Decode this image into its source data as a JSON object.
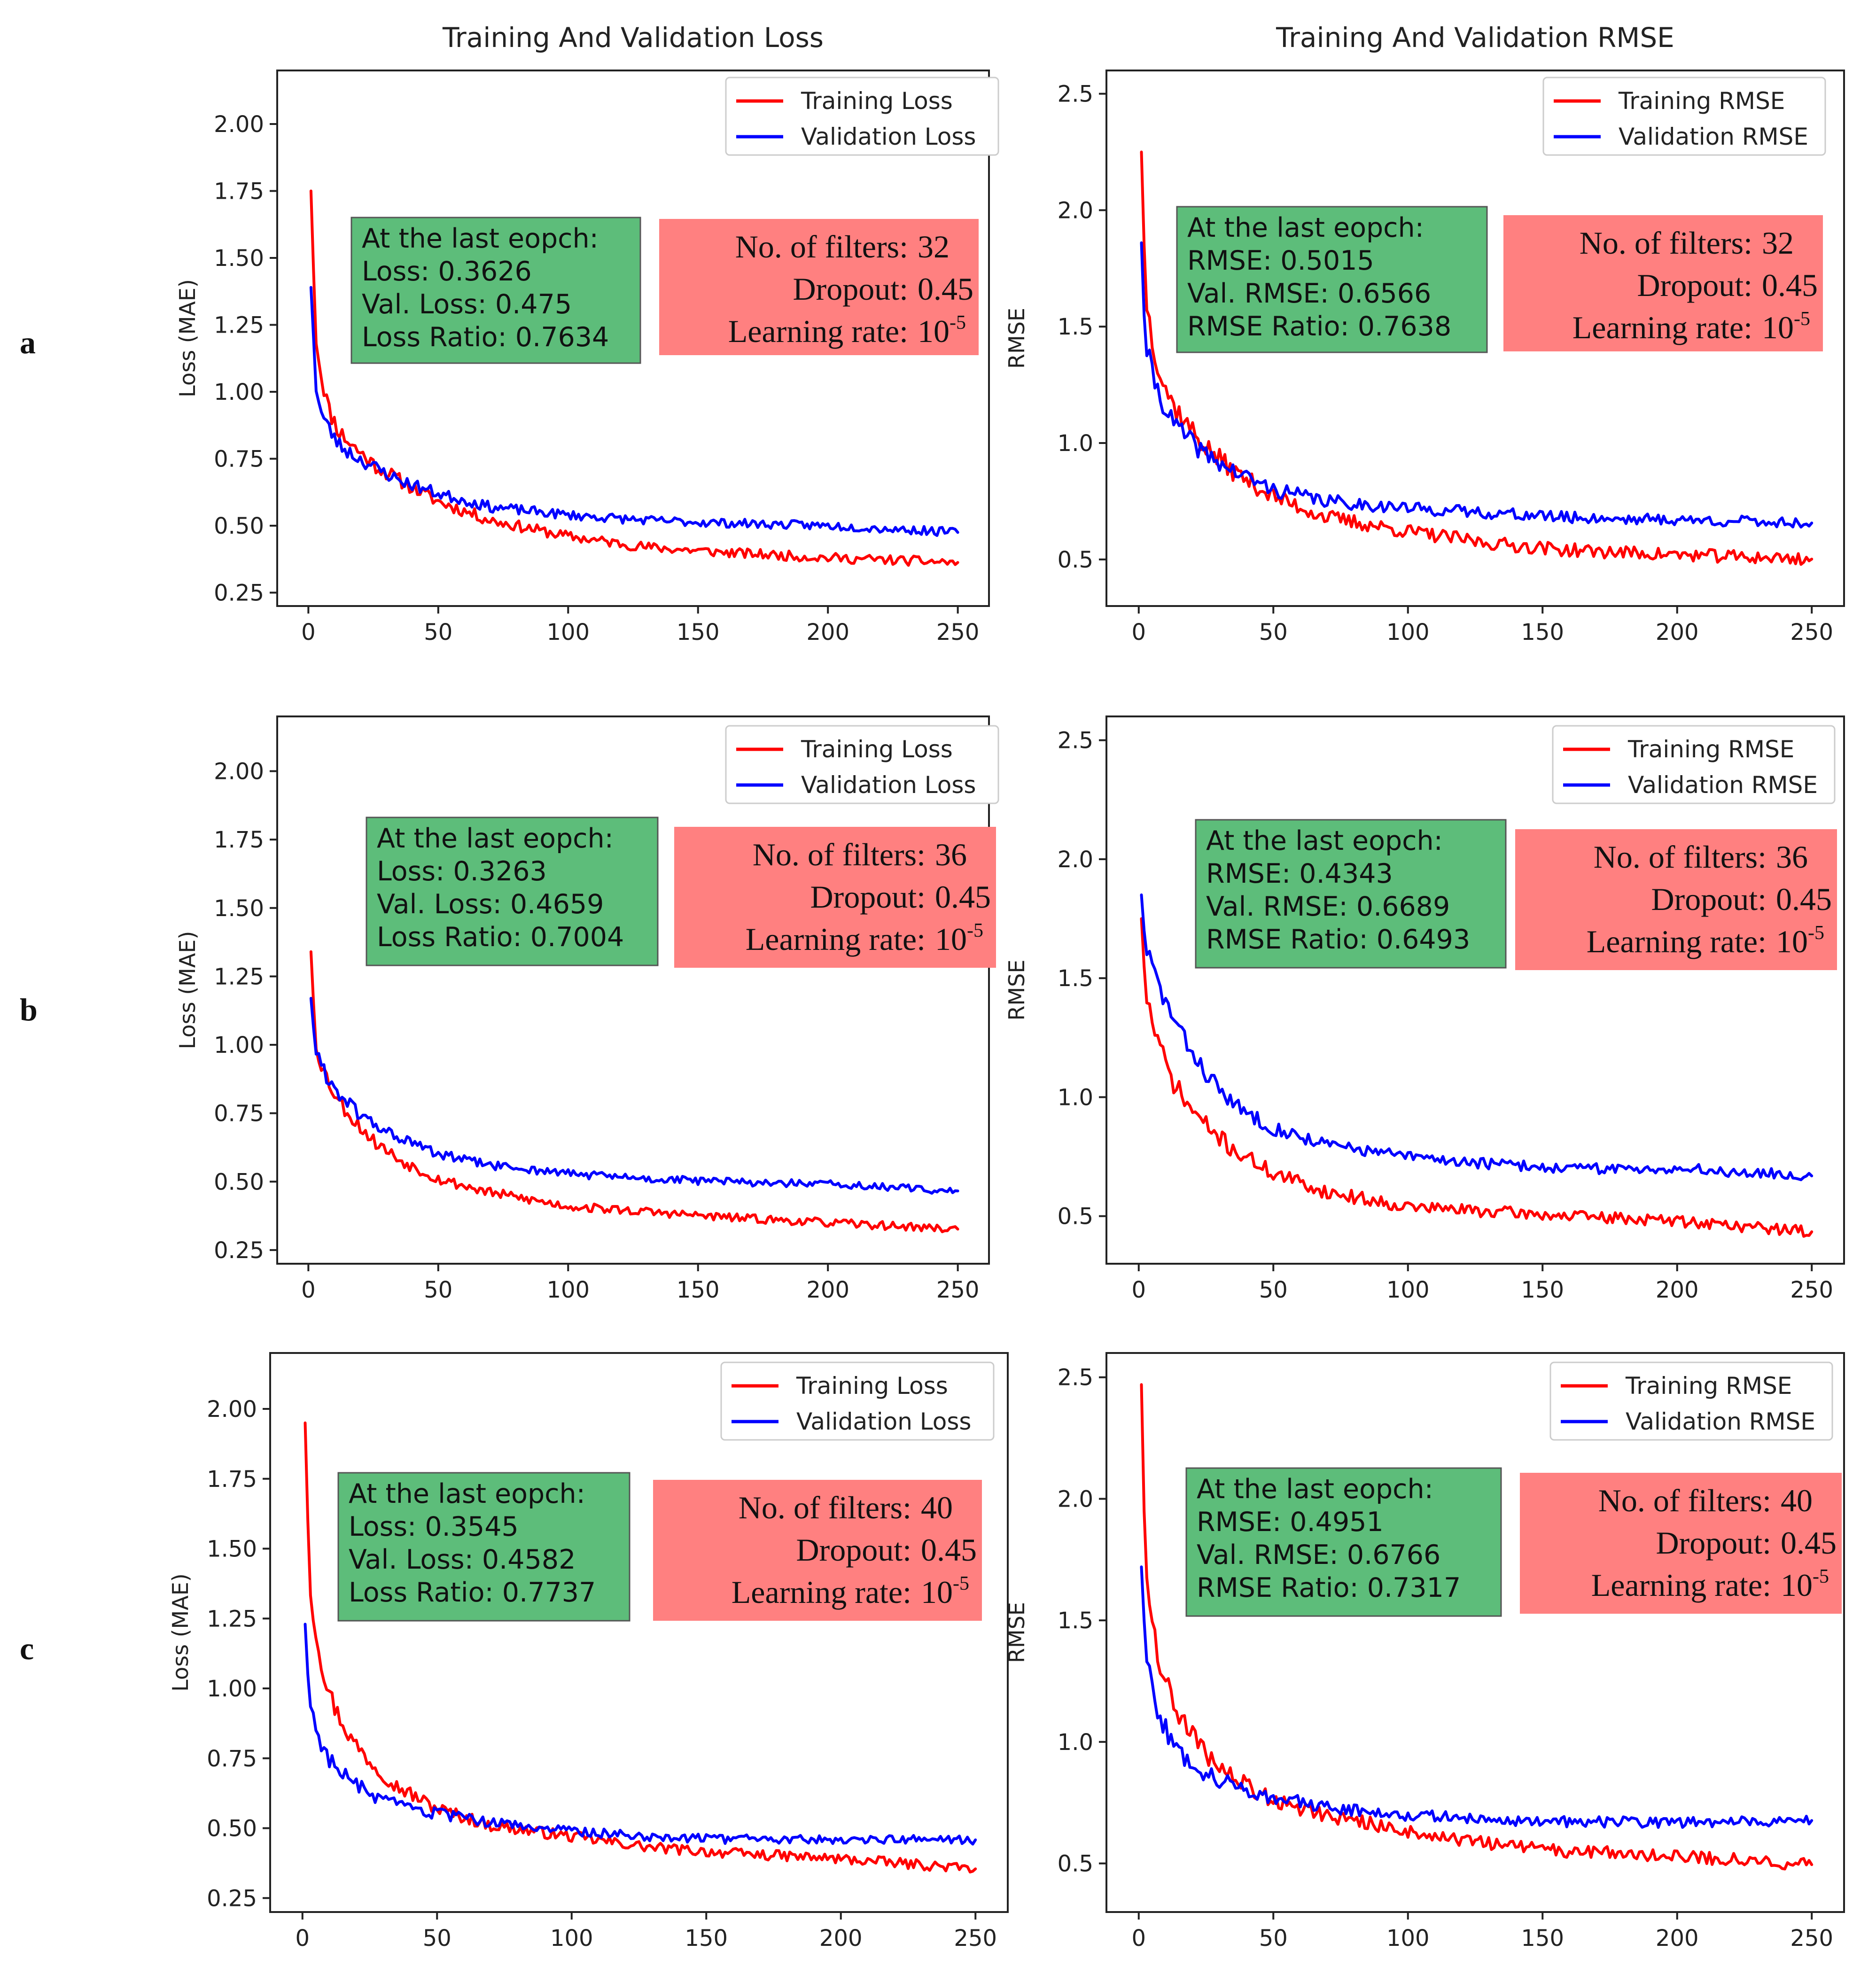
{
  "colors": {
    "training": "#ff0000",
    "validation": "#0000ff",
    "stats_box": "#5dbd7a",
    "params_box": "#ff8080",
    "frame": "#222222",
    "text": "#222222"
  },
  "row_labels": [
    "a",
    "b",
    "c"
  ],
  "chart_data": [
    {
      "type": "line",
      "row": "a",
      "column": "loss",
      "title": "Training And Validation Loss",
      "xlabel": "",
      "ylabel": "Loss (MAE)",
      "xlim": [
        -12,
        262
      ],
      "ylim": [
        0.2,
        2.2
      ],
      "xticks": [
        0,
        50,
        100,
        150,
        200,
        250
      ],
      "xtick_labels": [
        "0",
        "50",
        "100",
        "150",
        "200",
        "250"
      ],
      "yticks": [
        0.25,
        0.5,
        0.75,
        1.0,
        1.25,
        1.5,
        1.75,
        2.0
      ],
      "ytick_labels": [
        "0.25",
        "0.50",
        "0.75",
        "1.00",
        "1.25",
        "1.50",
        "1.75",
        "2.00"
      ],
      "legend": {
        "position": "upper-right",
        "entries": [
          "Training Loss",
          "Validation Loss"
        ]
      },
      "series": [
        {
          "name": "Training Loss",
          "color": "training",
          "x": [
            1,
            2,
            3,
            5,
            8,
            12,
            18,
            25,
            35,
            50,
            70,
            100,
            130,
            160,
            200,
            250
          ],
          "values": [
            1.75,
            1.45,
            1.2,
            1.06,
            0.93,
            0.85,
            0.79,
            0.73,
            0.67,
            0.59,
            0.52,
            0.46,
            0.42,
            0.4,
            0.38,
            0.3626
          ],
          "noise": 0.018,
          "seed": 11
        },
        {
          "name": "Validation Loss",
          "color": "validation",
          "x": [
            1,
            2,
            3,
            5,
            8,
            12,
            18,
            25,
            35,
            50,
            70,
            100,
            130,
            160,
            200,
            250
          ],
          "values": [
            1.39,
            1.2,
            1.02,
            0.92,
            0.86,
            0.8,
            0.76,
            0.72,
            0.67,
            0.62,
            0.57,
            0.54,
            0.52,
            0.51,
            0.5,
            0.475
          ],
          "noise": 0.016,
          "seed": 23
        }
      ],
      "stats_box": {
        "lines": [
          "At the last eopch:",
          "Loss: 0.3626",
          "Val. Loss: 0.475",
          "Loss Ratio: 0.7634"
        ]
      },
      "params_box": {
        "filters_label": "No. of filters:",
        "filters": "32",
        "dropout_label": "Dropout:",
        "dropout": "0.45",
        "lr_label": "Learning rate:",
        "lr_base": "10",
        "lr_exp": "-5"
      }
    },
    {
      "type": "line",
      "row": "a",
      "column": "rmse",
      "title": "Training And Validation RMSE",
      "xlabel": "",
      "ylabel": "RMSE",
      "xlim": [
        -12,
        262
      ],
      "ylim": [
        0.3,
        2.6
      ],
      "xticks": [
        0,
        50,
        100,
        150,
        200,
        250
      ],
      "xtick_labels": [
        "0",
        "50",
        "100",
        "150",
        "200",
        "250"
      ],
      "yticks": [
        0.5,
        1.0,
        1.5,
        2.0,
        2.5
      ],
      "ytick_labels": [
        "0.5",
        "1.0",
        "1.5",
        "2.0",
        "2.5"
      ],
      "legend": {
        "position": "upper-right",
        "entries": [
          "Training RMSE",
          "Validation RMSE"
        ]
      },
      "series": [
        {
          "name": "Training RMSE",
          "color": "training",
          "x": [
            1,
            2,
            3,
            5,
            8,
            12,
            18,
            25,
            35,
            50,
            70,
            100,
            130,
            160,
            200,
            250
          ],
          "values": [
            2.25,
            1.85,
            1.6,
            1.45,
            1.3,
            1.18,
            1.08,
            0.98,
            0.88,
            0.77,
            0.68,
            0.62,
            0.57,
            0.54,
            0.52,
            0.5015
          ],
          "noise": 0.028,
          "seed": 37
        },
        {
          "name": "Validation RMSE",
          "color": "validation",
          "x": [
            1,
            2,
            3,
            5,
            8,
            12,
            18,
            25,
            35,
            50,
            70,
            100,
            130,
            160,
            200,
            250
          ],
          "values": [
            1.86,
            1.55,
            1.4,
            1.3,
            1.2,
            1.1,
            1.02,
            0.95,
            0.88,
            0.8,
            0.75,
            0.72,
            0.7,
            0.68,
            0.67,
            0.6566
          ],
          "noise": 0.024,
          "seed": 41
        }
      ],
      "stats_box": {
        "lines": [
          "At the last eopch:",
          "RMSE: 0.5015",
          "Val. RMSE: 0.6566",
          "RMSE Ratio: 0.7638"
        ]
      },
      "params_box": {
        "filters_label": "No. of filters:",
        "filters": "32",
        "dropout_label": "Dropout:",
        "dropout": "0.45",
        "lr_label": "Learning rate:",
        "lr_base": "10",
        "lr_exp": "-5"
      }
    },
    {
      "type": "line",
      "row": "b",
      "column": "loss",
      "title": "",
      "xlabel": "",
      "ylabel": "Loss (MAE)",
      "xlim": [
        -12,
        262
      ],
      "ylim": [
        0.2,
        2.2
      ],
      "xticks": [
        0,
        50,
        100,
        150,
        200,
        250
      ],
      "xtick_labels": [
        "0",
        "50",
        "100",
        "150",
        "200",
        "250"
      ],
      "yticks": [
        0.25,
        0.5,
        0.75,
        1.0,
        1.25,
        1.5,
        1.75,
        2.0
      ],
      "ytick_labels": [
        "0.25",
        "0.50",
        "0.75",
        "1.00",
        "1.25",
        "1.50",
        "1.75",
        "2.00"
      ],
      "legend": {
        "position": "upper-right",
        "entries": [
          "Training Loss",
          "Validation Loss"
        ]
      },
      "series": [
        {
          "name": "Training Loss",
          "color": "training",
          "x": [
            1,
            2,
            3,
            5,
            8,
            12,
            18,
            25,
            35,
            50,
            70,
            100,
            130,
            160,
            200,
            250
          ],
          "values": [
            1.34,
            1.15,
            1.0,
            0.93,
            0.86,
            0.79,
            0.72,
            0.65,
            0.58,
            0.51,
            0.46,
            0.41,
            0.39,
            0.37,
            0.35,
            0.3263
          ],
          "noise": 0.015,
          "seed": 53
        },
        {
          "name": "Validation Loss",
          "color": "validation",
          "x": [
            1,
            2,
            3,
            5,
            8,
            12,
            18,
            25,
            35,
            50,
            70,
            100,
            130,
            160,
            200,
            250
          ],
          "values": [
            1.17,
            1.06,
            0.98,
            0.92,
            0.87,
            0.82,
            0.76,
            0.71,
            0.66,
            0.6,
            0.56,
            0.53,
            0.51,
            0.5,
            0.49,
            0.4659
          ],
          "noise": 0.014,
          "seed": 61
        }
      ],
      "stats_box": {
        "lines": [
          "At the last eopch:",
          "Loss: 0.3263",
          "Val. Loss: 0.4659",
          "Loss Ratio: 0.7004"
        ]
      },
      "params_box": {
        "filters_label": "No. of filters:",
        "filters": "36",
        "dropout_label": "Dropout:",
        "dropout": "0.45",
        "lr_label": "Learning rate:",
        "lr_base": "10",
        "lr_exp": "-5"
      }
    },
    {
      "type": "line",
      "row": "b",
      "column": "rmse",
      "title": "",
      "xlabel": "",
      "ylabel": "RMSE",
      "xlim": [
        -12,
        262
      ],
      "ylim": [
        0.3,
        2.6
      ],
      "xticks": [
        0,
        50,
        100,
        150,
        200,
        250
      ],
      "xtick_labels": [
        "0",
        "50",
        "100",
        "150",
        "200",
        "250"
      ],
      "yticks": [
        0.5,
        1.0,
        1.5,
        2.0,
        2.5
      ],
      "ytick_labels": [
        "0.5",
        "1.0",
        "1.5",
        "2.0",
        "2.5"
      ],
      "legend": {
        "position": "upper-right",
        "entries": [
          "Training RMSE",
          "Validation RMSE"
        ]
      },
      "series": [
        {
          "name": "Training RMSE",
          "color": "training",
          "x": [
            1,
            2,
            3,
            5,
            8,
            12,
            18,
            25,
            35,
            50,
            70,
            100,
            130,
            160,
            200,
            250
          ],
          "values": [
            1.75,
            1.55,
            1.42,
            1.32,
            1.2,
            1.08,
            0.97,
            0.88,
            0.78,
            0.68,
            0.6,
            0.54,
            0.52,
            0.5,
            0.48,
            0.4343
          ],
          "noise": 0.024,
          "seed": 71
        },
        {
          "name": "Validation RMSE",
          "color": "validation",
          "x": [
            1,
            2,
            3,
            5,
            8,
            12,
            18,
            25,
            35,
            50,
            70,
            100,
            130,
            160,
            200,
            250
          ],
          "values": [
            1.85,
            1.7,
            1.62,
            1.55,
            1.45,
            1.35,
            1.22,
            1.1,
            0.97,
            0.87,
            0.8,
            0.75,
            0.72,
            0.7,
            0.7,
            0.6689
          ],
          "noise": 0.022,
          "seed": 83
        }
      ],
      "stats_box": {
        "lines": [
          "At the last eopch:",
          "RMSE: 0.4343",
          "Val. RMSE: 0.6689",
          "RMSE Ratio: 0.6493"
        ]
      },
      "params_box": {
        "filters_label": "No. of filters:",
        "filters": "36",
        "dropout_label": "Dropout:",
        "dropout": "0.45",
        "lr_label": "Learning rate:",
        "lr_base": "10",
        "lr_exp": "-5"
      }
    },
    {
      "type": "line",
      "row": "c",
      "column": "loss",
      "title": "",
      "xlabel": "",
      "ylabel": "Loss (MAE)",
      "xlim": [
        -12,
        262
      ],
      "ylim": [
        0.2,
        2.2
      ],
      "xticks": [
        0,
        50,
        100,
        150,
        200,
        250
      ],
      "xtick_labels": [
        "0",
        "50",
        "100",
        "150",
        "200",
        "250"
      ],
      "yticks": [
        0.25,
        0.5,
        0.75,
        1.0,
        1.25,
        1.5,
        1.75,
        2.0
      ],
      "ytick_labels": [
        "0.25",
        "0.50",
        "0.75",
        "1.00",
        "1.25",
        "1.50",
        "1.75",
        "2.00"
      ],
      "legend": {
        "position": "upper-right",
        "entries": [
          "Training Loss",
          "Validation Loss"
        ]
      },
      "series": [
        {
          "name": "Training Loss",
          "color": "training",
          "x": [
            1,
            2,
            3,
            5,
            8,
            12,
            18,
            25,
            35,
            50,
            70,
            100,
            130,
            160,
            200,
            250
          ],
          "values": [
            1.95,
            1.6,
            1.35,
            1.2,
            1.05,
            0.93,
            0.82,
            0.74,
            0.65,
            0.57,
            0.51,
            0.47,
            0.43,
            0.41,
            0.39,
            0.3545
          ],
          "noise": 0.018,
          "seed": 97
        },
        {
          "name": "Validation Loss",
          "color": "validation",
          "x": [
            1,
            2,
            3,
            5,
            8,
            12,
            18,
            25,
            35,
            50,
            70,
            100,
            130,
            160,
            200,
            250
          ],
          "values": [
            1.23,
            1.05,
            0.95,
            0.86,
            0.78,
            0.72,
            0.67,
            0.62,
            0.58,
            0.55,
            0.52,
            0.49,
            0.47,
            0.46,
            0.46,
            0.4582
          ],
          "noise": 0.016,
          "seed": 103
        }
      ],
      "stats_box": {
        "lines": [
          "At the last eopch:",
          "Loss: 0.3545",
          "Val. Loss: 0.4582",
          "Loss Ratio: 0.7737"
        ]
      },
      "params_box": {
        "filters_label": "No. of filters:",
        "filters": "40",
        "dropout_label": "Dropout:",
        "dropout": "0.45",
        "lr_label": "Learning rate:",
        "lr_base": "10",
        "lr_exp": "-5"
      }
    },
    {
      "type": "line",
      "row": "c",
      "column": "rmse",
      "title": "",
      "xlabel": "",
      "ylabel": "RMSE",
      "xlim": [
        -12,
        262
      ],
      "ylim": [
        0.3,
        2.6
      ],
      "xticks": [
        0,
        50,
        100,
        150,
        200,
        250
      ],
      "xtick_labels": [
        "0",
        "50",
        "100",
        "150",
        "200",
        "250"
      ],
      "yticks": [
        0.5,
        1.0,
        1.5,
        2.0,
        2.5
      ],
      "ytick_labels": [
        "0.5",
        "1.0",
        "1.5",
        "2.0",
        "2.5"
      ],
      "legend": {
        "position": "upper-right",
        "entries": [
          "Training RMSE",
          "Validation RMSE"
        ]
      },
      "series": [
        {
          "name": "Training RMSE",
          "color": "training",
          "x": [
            1,
            2,
            3,
            5,
            8,
            12,
            18,
            25,
            35,
            50,
            70,
            100,
            130,
            160,
            200,
            250
          ],
          "values": [
            2.47,
            1.95,
            1.7,
            1.5,
            1.32,
            1.18,
            1.05,
            0.95,
            0.85,
            0.76,
            0.7,
            0.63,
            0.58,
            0.55,
            0.53,
            0.4951
          ],
          "noise": 0.026,
          "seed": 109
        },
        {
          "name": "Validation RMSE",
          "color": "validation",
          "x": [
            1,
            2,
            3,
            5,
            8,
            12,
            18,
            25,
            35,
            50,
            70,
            100,
            130,
            160,
            200,
            250
          ],
          "values": [
            1.72,
            1.5,
            1.35,
            1.22,
            1.1,
            1.0,
            0.93,
            0.87,
            0.82,
            0.77,
            0.73,
            0.7,
            0.68,
            0.67,
            0.67,
            0.6766
          ],
          "noise": 0.022,
          "seed": 127
        }
      ],
      "stats_box": {
        "lines": [
          "At the last eopch:",
          "RMSE: 0.4951",
          "Val. RMSE: 0.6766",
          "RMSE Ratio: 0.7317"
        ]
      },
      "params_box": {
        "filters_label": "No. of filters:",
        "filters": "40",
        "dropout_label": "Dropout:",
        "dropout": "0.45",
        "lr_label": "Learning rate:",
        "lr_base": "10",
        "lr_exp": "-5"
      }
    }
  ]
}
